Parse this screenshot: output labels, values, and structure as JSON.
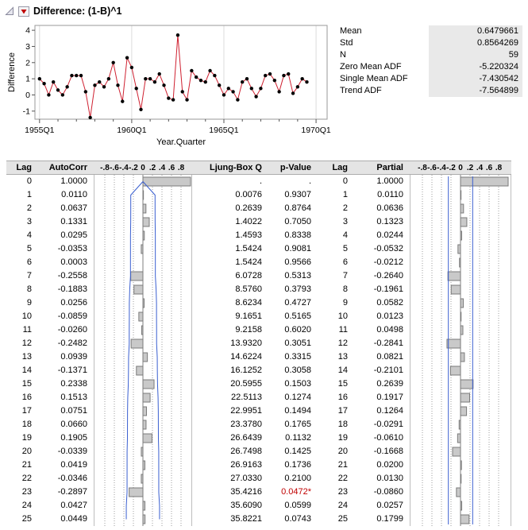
{
  "header": {
    "title": "Difference: (1-B)^1"
  },
  "stats": {
    "rows": [
      {
        "label": "Mean",
        "value": "0.6479661"
      },
      {
        "label": "Std",
        "value": "0.8564269"
      },
      {
        "label": "N",
        "value": "59"
      },
      {
        "label": "Zero Mean ADF",
        "value": "-5.220324"
      },
      {
        "label": "Single Mean ADF",
        "value": "-7.430542"
      },
      {
        "label": "Trend ADF",
        "value": "-7.564899"
      }
    ]
  },
  "chart_data": [
    {
      "type": "line",
      "title": "Differenced series over time",
      "xlabel": "Year.Quarter",
      "ylabel": "Difference",
      "x_start_year": 1955,
      "x_step_years": 0.25,
      "xlim": [
        1954.75,
        1970.6
      ],
      "ylim": [
        -1.5,
        4.3
      ],
      "y_ticks": [
        -1,
        0,
        1,
        2,
        3,
        4
      ],
      "x_tick_years": [
        1955,
        1960,
        1965,
        1970
      ],
      "x_tick_labels": [
        "1955Q1",
        "1960Q1",
        "1965Q1",
        "1970Q1"
      ],
      "grid": true,
      "line_color": "#cf2030",
      "marker_color": "#000000",
      "values": [
        1.0,
        0.7,
        0.0,
        0.8,
        0.3,
        0.0,
        0.5,
        1.2,
        1.2,
        1.2,
        0.2,
        -1.4,
        0.6,
        0.8,
        0.5,
        1.0,
        2.0,
        0.6,
        -0.4,
        2.3,
        1.7,
        0.4,
        -0.9,
        1.0,
        1.0,
        0.8,
        1.3,
        0.6,
        -0.2,
        -0.3,
        3.7,
        0.2,
        -0.3,
        1.5,
        1.1,
        0.9,
        0.8,
        1.5,
        1.2,
        0.6,
        0.0,
        0.4,
        0.2,
        -0.3,
        0.8,
        1.0,
        0.4,
        -0.1,
        0.4,
        1.2,
        1.3,
        0.9,
        0.2,
        1.2,
        1.3,
        0.1,
        0.5,
        1.0,
        0.8
      ]
    },
    {
      "type": "bar",
      "name": "AutoCorr",
      "orientation": "horizontal",
      "xlim": [
        -1,
        1
      ],
      "tick_values": [
        -0.8,
        -0.6,
        -0.4,
        -0.2,
        0,
        0.2,
        0.4,
        0.6,
        0.8
      ],
      "confidence": "funnel",
      "n": 59,
      "values": [
        1.0,
        0.011,
        0.0637,
        0.1331,
        0.0295,
        -0.0353,
        0.0003,
        -0.2558,
        -0.1883,
        0.0256,
        -0.0859,
        -0.026,
        -0.2482,
        0.0939,
        -0.1371,
        0.2338,
        0.1513,
        0.0751,
        0.066,
        0.1905,
        -0.0339,
        0.0419,
        -0.0346,
        -0.2897,
        0.0427,
        0.0449
      ]
    },
    {
      "type": "bar",
      "name": "Partial",
      "orientation": "horizontal",
      "xlim": [
        -1,
        1
      ],
      "tick_values": [
        -0.8,
        -0.6,
        -0.4,
        -0.2,
        0,
        0.2,
        0.4,
        0.6,
        0.8
      ],
      "confidence": "lines",
      "conf_limit": 0.2552,
      "values": [
        1.0,
        0.011,
        0.0636,
        0.1323,
        0.0244,
        -0.0532,
        -0.0212,
        -0.264,
        -0.1961,
        0.0582,
        0.0123,
        0.0498,
        -0.2841,
        0.0821,
        -0.2101,
        0.2639,
        0.1917,
        0.1264,
        -0.0291,
        -0.061,
        -0.1668,
        0.02,
        0.013,
        -0.086,
        0.0257,
        0.1799
      ]
    }
  ],
  "corr_table": {
    "headers": {
      "lag": "Lag",
      "autocorr": "AutoCorr",
      "ljung": "Ljung-Box Q",
      "pvalue": "p-Value",
      "lag2": "Lag",
      "partial": "Partial"
    },
    "axis_tick_labels": [
      "-.8",
      "-.6",
      "-.4",
      "-.2",
      "0",
      ".2",
      ".4",
      ".6",
      ".8"
    ],
    "axis_tick_values": [
      -0.8,
      -0.6,
      -0.4,
      -0.2,
      0,
      0.2,
      0.4,
      0.6,
      0.8
    ],
    "rows": [
      {
        "lag": "0",
        "autocorr": "1.0000",
        "ljung": ".",
        "pvalue": ".",
        "partial": "1.0000"
      },
      {
        "lag": "1",
        "autocorr": "0.0110",
        "ljung": "0.0076",
        "pvalue": "0.9307",
        "partial": "0.0110"
      },
      {
        "lag": "2",
        "autocorr": "0.0637",
        "ljung": "0.2639",
        "pvalue": "0.8764",
        "partial": "0.0636"
      },
      {
        "lag": "3",
        "autocorr": "0.1331",
        "ljung": "1.4022",
        "pvalue": "0.7050",
        "partial": "0.1323"
      },
      {
        "lag": "4",
        "autocorr": "0.0295",
        "ljung": "1.4593",
        "pvalue": "0.8338",
        "partial": "0.0244"
      },
      {
        "lag": "5",
        "autocorr": "-0.0353",
        "ljung": "1.5424",
        "pvalue": "0.9081",
        "partial": "-0.0532"
      },
      {
        "lag": "6",
        "autocorr": "0.0003",
        "ljung": "1.5424",
        "pvalue": "0.9566",
        "partial": "-0.0212"
      },
      {
        "lag": "7",
        "autocorr": "-0.2558",
        "ljung": "6.0728",
        "pvalue": "0.5313",
        "partial": "-0.2640"
      },
      {
        "lag": "8",
        "autocorr": "-0.1883",
        "ljung": "8.5760",
        "pvalue": "0.3793",
        "partial": "-0.1961"
      },
      {
        "lag": "9",
        "autocorr": "0.0256",
        "ljung": "8.6234",
        "pvalue": "0.4727",
        "partial": "0.0582"
      },
      {
        "lag": "10",
        "autocorr": "-0.0859",
        "ljung": "9.1651",
        "pvalue": "0.5165",
        "partial": "0.0123"
      },
      {
        "lag": "11",
        "autocorr": "-0.0260",
        "ljung": "9.2158",
        "pvalue": "0.6020",
        "partial": "0.0498"
      },
      {
        "lag": "12",
        "autocorr": "-0.2482",
        "ljung": "13.9320",
        "pvalue": "0.3051",
        "partial": "-0.2841"
      },
      {
        "lag": "13",
        "autocorr": "0.0939",
        "ljung": "14.6224",
        "pvalue": "0.3315",
        "partial": "0.0821"
      },
      {
        "lag": "14",
        "autocorr": "-0.1371",
        "ljung": "16.1252",
        "pvalue": "0.3058",
        "partial": "-0.2101"
      },
      {
        "lag": "15",
        "autocorr": "0.2338",
        "ljung": "20.5955",
        "pvalue": "0.1503",
        "partial": "0.2639"
      },
      {
        "lag": "16",
        "autocorr": "0.1513",
        "ljung": "22.5113",
        "pvalue": "0.1274",
        "partial": "0.1917"
      },
      {
        "lag": "17",
        "autocorr": "0.0751",
        "ljung": "22.9951",
        "pvalue": "0.1494",
        "partial": "0.1264"
      },
      {
        "lag": "18",
        "autocorr": "0.0660",
        "ljung": "23.3780",
        "pvalue": "0.1765",
        "partial": "-0.0291"
      },
      {
        "lag": "19",
        "autocorr": "0.1905",
        "ljung": "26.6439",
        "pvalue": "0.1132",
        "partial": "-0.0610"
      },
      {
        "lag": "20",
        "autocorr": "-0.0339",
        "ljung": "26.7498",
        "pvalue": "0.1425",
        "partial": "-0.1668"
      },
      {
        "lag": "21",
        "autocorr": "0.0419",
        "ljung": "26.9163",
        "pvalue": "0.1736",
        "partial": "0.0200"
      },
      {
        "lag": "22",
        "autocorr": "-0.0346",
        "ljung": "27.0330",
        "pvalue": "0.2100",
        "partial": "0.0130"
      },
      {
        "lag": "23",
        "autocorr": "-0.2897",
        "ljung": "35.4216",
        "pvalue": "0.0472*",
        "sig": true,
        "partial": "-0.0860"
      },
      {
        "lag": "24",
        "autocorr": "0.0427",
        "ljung": "35.6090",
        "pvalue": "0.0599",
        "partial": "0.0257"
      },
      {
        "lag": "25",
        "autocorr": "0.0449",
        "ljung": "35.8221",
        "pvalue": "0.0743",
        "partial": "0.1799"
      }
    ]
  },
  "colors": {
    "significant_red": "#c00000",
    "bar_fill": "#c9c9c9",
    "bar_stroke": "#7a7a7a",
    "confidence_blue": "#3a5fd0",
    "header_bg": "#e4e4e4",
    "series_line_red": "#cf2030"
  }
}
